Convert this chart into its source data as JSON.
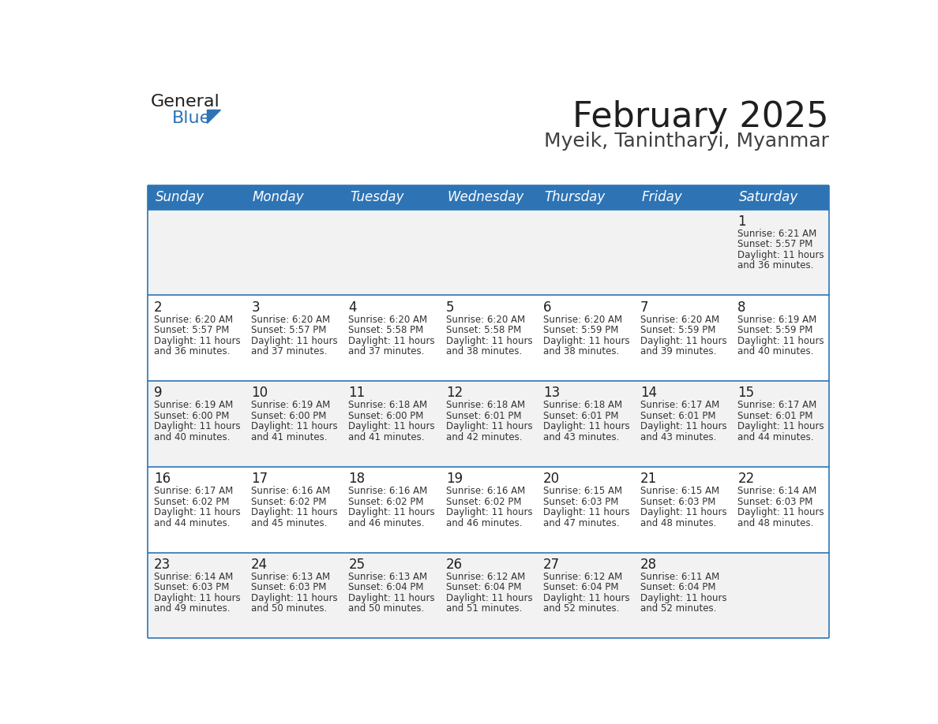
{
  "title": "February 2025",
  "subtitle": "Myeik, Tanintharyi, Myanmar",
  "header_color": "#2E74B5",
  "header_text_color": "#FFFFFF",
  "row0_bg": "#F2F2F2",
  "row_odd_bg": "#FFFFFF",
  "row_even_bg": "#F2F2F2",
  "title_color": "#1F1F1F",
  "subtitle_color": "#404040",
  "day_text_color": "#1F1F1F",
  "info_text_color": "#333333",
  "sep_line_color": "#2E74B5",
  "day_names": [
    "Sunday",
    "Monday",
    "Tuesday",
    "Wednesday",
    "Thursday",
    "Friday",
    "Saturday"
  ],
  "days": [
    {
      "day": 1,
      "col": 6,
      "row": 0,
      "sunrise": "6:21 AM",
      "sunset": "5:57 PM",
      "daylight_hours": 11,
      "daylight_minutes": 36
    },
    {
      "day": 2,
      "col": 0,
      "row": 1,
      "sunrise": "6:20 AM",
      "sunset": "5:57 PM",
      "daylight_hours": 11,
      "daylight_minutes": 36
    },
    {
      "day": 3,
      "col": 1,
      "row": 1,
      "sunrise": "6:20 AM",
      "sunset": "5:57 PM",
      "daylight_hours": 11,
      "daylight_minutes": 37
    },
    {
      "day": 4,
      "col": 2,
      "row": 1,
      "sunrise": "6:20 AM",
      "sunset": "5:58 PM",
      "daylight_hours": 11,
      "daylight_minutes": 37
    },
    {
      "day": 5,
      "col": 3,
      "row": 1,
      "sunrise": "6:20 AM",
      "sunset": "5:58 PM",
      "daylight_hours": 11,
      "daylight_minutes": 38
    },
    {
      "day": 6,
      "col": 4,
      "row": 1,
      "sunrise": "6:20 AM",
      "sunset": "5:59 PM",
      "daylight_hours": 11,
      "daylight_minutes": 38
    },
    {
      "day": 7,
      "col": 5,
      "row": 1,
      "sunrise": "6:20 AM",
      "sunset": "5:59 PM",
      "daylight_hours": 11,
      "daylight_minutes": 39
    },
    {
      "day": 8,
      "col": 6,
      "row": 1,
      "sunrise": "6:19 AM",
      "sunset": "5:59 PM",
      "daylight_hours": 11,
      "daylight_minutes": 40
    },
    {
      "day": 9,
      "col": 0,
      "row": 2,
      "sunrise": "6:19 AM",
      "sunset": "6:00 PM",
      "daylight_hours": 11,
      "daylight_minutes": 40
    },
    {
      "day": 10,
      "col": 1,
      "row": 2,
      "sunrise": "6:19 AM",
      "sunset": "6:00 PM",
      "daylight_hours": 11,
      "daylight_minutes": 41
    },
    {
      "day": 11,
      "col": 2,
      "row": 2,
      "sunrise": "6:18 AM",
      "sunset": "6:00 PM",
      "daylight_hours": 11,
      "daylight_minutes": 41
    },
    {
      "day": 12,
      "col": 3,
      "row": 2,
      "sunrise": "6:18 AM",
      "sunset": "6:01 PM",
      "daylight_hours": 11,
      "daylight_minutes": 42
    },
    {
      "day": 13,
      "col": 4,
      "row": 2,
      "sunrise": "6:18 AM",
      "sunset": "6:01 PM",
      "daylight_hours": 11,
      "daylight_minutes": 43
    },
    {
      "day": 14,
      "col": 5,
      "row": 2,
      "sunrise": "6:17 AM",
      "sunset": "6:01 PM",
      "daylight_hours": 11,
      "daylight_minutes": 43
    },
    {
      "day": 15,
      "col": 6,
      "row": 2,
      "sunrise": "6:17 AM",
      "sunset": "6:01 PM",
      "daylight_hours": 11,
      "daylight_minutes": 44
    },
    {
      "day": 16,
      "col": 0,
      "row": 3,
      "sunrise": "6:17 AM",
      "sunset": "6:02 PM",
      "daylight_hours": 11,
      "daylight_minutes": 44
    },
    {
      "day": 17,
      "col": 1,
      "row": 3,
      "sunrise": "6:16 AM",
      "sunset": "6:02 PM",
      "daylight_hours": 11,
      "daylight_minutes": 45
    },
    {
      "day": 18,
      "col": 2,
      "row": 3,
      "sunrise": "6:16 AM",
      "sunset": "6:02 PM",
      "daylight_hours": 11,
      "daylight_minutes": 46
    },
    {
      "day": 19,
      "col": 3,
      "row": 3,
      "sunrise": "6:16 AM",
      "sunset": "6:02 PM",
      "daylight_hours": 11,
      "daylight_minutes": 46
    },
    {
      "day": 20,
      "col": 4,
      "row": 3,
      "sunrise": "6:15 AM",
      "sunset": "6:03 PM",
      "daylight_hours": 11,
      "daylight_minutes": 47
    },
    {
      "day": 21,
      "col": 5,
      "row": 3,
      "sunrise": "6:15 AM",
      "sunset": "6:03 PM",
      "daylight_hours": 11,
      "daylight_minutes": 48
    },
    {
      "day": 22,
      "col": 6,
      "row": 3,
      "sunrise": "6:14 AM",
      "sunset": "6:03 PM",
      "daylight_hours": 11,
      "daylight_minutes": 48
    },
    {
      "day": 23,
      "col": 0,
      "row": 4,
      "sunrise": "6:14 AM",
      "sunset": "6:03 PM",
      "daylight_hours": 11,
      "daylight_minutes": 49
    },
    {
      "day": 24,
      "col": 1,
      "row": 4,
      "sunrise": "6:13 AM",
      "sunset": "6:03 PM",
      "daylight_hours": 11,
      "daylight_minutes": 50
    },
    {
      "day": 25,
      "col": 2,
      "row": 4,
      "sunrise": "6:13 AM",
      "sunset": "6:04 PM",
      "daylight_hours": 11,
      "daylight_minutes": 50
    },
    {
      "day": 26,
      "col": 3,
      "row": 4,
      "sunrise": "6:12 AM",
      "sunset": "6:04 PM",
      "daylight_hours": 11,
      "daylight_minutes": 51
    },
    {
      "day": 27,
      "col": 4,
      "row": 4,
      "sunrise": "6:12 AM",
      "sunset": "6:04 PM",
      "daylight_hours": 11,
      "daylight_minutes": 52
    },
    {
      "day": 28,
      "col": 5,
      "row": 4,
      "sunrise": "6:11 AM",
      "sunset": "6:04 PM",
      "daylight_hours": 11,
      "daylight_minutes": 52
    }
  ],
  "num_rows": 5,
  "logo_text_general": "General",
  "logo_text_blue": "Blue",
  "logo_color_general": "#1F1F1F",
  "logo_color_blue": "#2E74B5",
  "logo_triangle_color": "#2E74B5",
  "fig_width": 11.88,
  "fig_height": 9.18,
  "dpi": 100
}
